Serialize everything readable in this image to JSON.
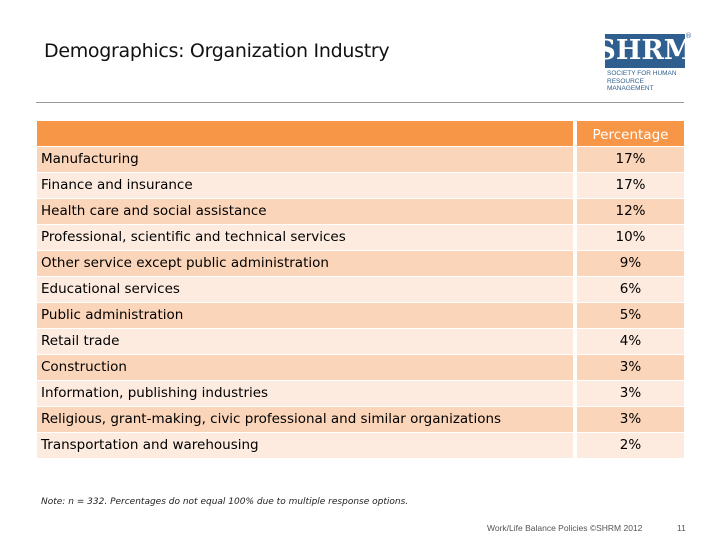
{
  "slide": {
    "title": "Demographics: Organization Industry"
  },
  "logo": {
    "wordmark": "SHRM",
    "registered": "®",
    "tagline_line1": "Society for Human",
    "tagline_line2": "Resource Management"
  },
  "table": {
    "header_label": "",
    "header_value": "Percentage",
    "rows": [
      {
        "label": "Manufacturing",
        "value": "17%"
      },
      {
        "label": "Finance and insurance",
        "value": "17%"
      },
      {
        "label": "Health care and social assistance",
        "value": "12%"
      },
      {
        "label": "Professional, scientific and technical services",
        "value": "10%"
      },
      {
        "label": "Other service except public administration",
        "value": "9%"
      },
      {
        "label": "Educational services",
        "value": "6%"
      },
      {
        "label": "Public administration",
        "value": "5%"
      },
      {
        "label": "Retail trade",
        "value": "4%"
      },
      {
        "label": "Construction",
        "value": "3%"
      },
      {
        "label": "Information, publishing industries",
        "value": "3%"
      },
      {
        "label": "Religious, grant-making, civic professional and similar organizations",
        "value": "3%"
      },
      {
        "label": "Transportation and warehousing",
        "value": "2%"
      }
    ]
  },
  "note": "Note: n = 332. Percentages do not equal 100% due to multiple response options.",
  "footer": {
    "source": "Work/Life Balance Policies ©SHRM 2012",
    "page_number": "11"
  },
  "colors": {
    "header_orange": "#f79646",
    "row_dark": "#fbd5b9",
    "row_light": "#fdebdf",
    "logo_blue": "#2f5f8f"
  }
}
